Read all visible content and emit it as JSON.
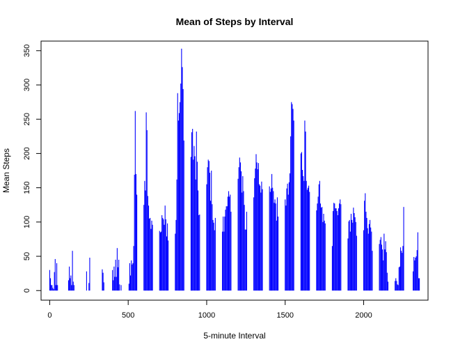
{
  "chart_data": {
    "type": "bar",
    "title": "Mean of Steps by Interval",
    "xlabel": "5-minute Interval",
    "ylabel": "Mean Steps",
    "xlim": [
      -55,
      2410
    ],
    "ylim": [
      -14,
      364
    ],
    "xticks": [
      0,
      500,
      1000,
      1500,
      2000
    ],
    "yticks": [
      0,
      50,
      100,
      150,
      200,
      250,
      300,
      350
    ],
    "color": "#0000ff",
    "grid": false,
    "legend": "none",
    "series": [
      {
        "x": [
          0,
          5,
          10,
          15,
          20,
          25,
          30,
          35,
          40,
          45,
          50,
          55,
          100,
          105,
          110,
          115,
          120,
          125,
          130,
          135,
          140,
          145,
          150,
          155,
          200,
          205,
          210,
          215,
          220,
          225,
          230,
          235,
          240,
          245,
          250,
          255,
          300,
          305,
          310,
          315,
          320,
          325,
          330,
          335,
          340,
          345,
          350,
          355,
          400,
          405,
          410,
          415,
          420,
          425,
          430,
          435,
          440,
          445,
          450,
          455,
          500,
          505,
          510,
          515,
          520,
          525,
          530,
          535,
          540,
          545,
          550,
          555,
          600,
          605,
          610,
          615,
          620,
          625,
          630,
          635,
          640,
          645,
          650,
          655,
          700,
          705,
          710,
          715,
          720,
          725,
          730,
          735,
          740,
          745,
          750,
          755,
          800,
          805,
          810,
          815,
          820,
          825,
          830,
          835,
          840,
          845,
          850,
          855,
          900,
          905,
          910,
          915,
          920,
          925,
          930,
          935,
          940,
          945,
          950,
          955,
          1000,
          1005,
          1010,
          1015,
          1020,
          1025,
          1030,
          1035,
          1040,
          1045,
          1050,
          1055,
          1100,
          1105,
          1110,
          1115,
          1120,
          1125,
          1130,
          1135,
          1140,
          1145,
          1150,
          1155,
          1200,
          1205,
          1210,
          1215,
          1220,
          1225,
          1230,
          1235,
          1240,
          1245,
          1250,
          1255,
          1300,
          1305,
          1310,
          1315,
          1320,
          1325,
          1330,
          1335,
          1340,
          1345,
          1350,
          1355,
          1400,
          1405,
          1410,
          1415,
          1420,
          1425,
          1430,
          1435,
          1440,
          1445,
          1450,
          1455,
          1500,
          1505,
          1510,
          1515,
          1520,
          1525,
          1530,
          1535,
          1540,
          1545,
          1550,
          1555,
          1600,
          1605,
          1610,
          1615,
          1620,
          1625,
          1630,
          1635,
          1640,
          1645,
          1650,
          1655,
          1700,
          1705,
          1710,
          1715,
          1720,
          1725,
          1730,
          1735,
          1740,
          1745,
          1750,
          1755,
          1800,
          1805,
          1810,
          1815,
          1820,
          1825,
          1830,
          1835,
          1840,
          1845,
          1850,
          1855,
          1900,
          1905,
          1910,
          1915,
          1920,
          1925,
          1930,
          1935,
          1940,
          1945,
          1950,
          1955,
          2000,
          2005,
          2010,
          2015,
          2020,
          2025,
          2030,
          2035,
          2040,
          2045,
          2050,
          2055,
          2100,
          2105,
          2110,
          2115,
          2120,
          2125,
          2130,
          2135,
          2140,
          2145,
          2150,
          2155,
          2200,
          2205,
          2210,
          2215,
          2220,
          2225,
          2230,
          2235,
          2240,
          2245,
          2250,
          2255,
          2300,
          2305,
          2310,
          2315,
          2320,
          2325,
          2330,
          2335,
          2340,
          2345,
          2350,
          2355
        ],
        "y": [
          30,
          18,
          8,
          8,
          4,
          2,
          27,
          46,
          8,
          40,
          8,
          0,
          0,
          0,
          0,
          0,
          15,
          35,
          18,
          22,
          8,
          58,
          13,
          8,
          0,
          0,
          0,
          0,
          0,
          0,
          0,
          28,
          0,
          0,
          11,
          48,
          0,
          0,
          0,
          0,
          0,
          0,
          0,
          31,
          26,
          12,
          0,
          0,
          30,
          15,
          35,
          20,
          45,
          20,
          62,
          34,
          45,
          9,
          0,
          8,
          0,
          10,
          40,
          22,
          44,
          38,
          40,
          65,
          169,
          262,
          170,
          140,
          125,
          160,
          146,
          260,
          234,
          138,
          124,
          105,
          106,
          90,
          102,
          96,
          87,
          85,
          86,
          110,
          106,
          104,
          96,
          124,
          104,
          79,
          98,
          73,
          83,
          103,
          162,
          288,
          248,
          259,
          275,
          302,
          353,
          326,
          294,
          219,
          195,
          231,
          236,
          191,
          211,
          196,
          162,
          232,
          188,
          146,
          110,
          111,
          155,
          180,
          191,
          189,
          172,
          131,
          175,
          126,
          103,
          99,
          88,
          106,
          86,
          108,
          86,
          108,
          118,
          123,
          123,
          137,
          145,
          137,
          140,
          115,
          163,
          180,
          194,
          187,
          174,
          143,
          167,
          145,
          125,
          89,
          89,
          115,
          136,
          164,
          178,
          199,
          187,
          177,
          186,
          155,
          153,
          143,
          159,
          148,
          152,
          144,
          149,
          170,
          150,
          145,
          128,
          133,
          127,
          102,
          136,
          108,
          133,
          124,
          149,
          156,
          140,
          158,
          171,
          225,
          275,
          272,
          265,
          248,
          200,
          202,
          176,
          167,
          160,
          248,
          232,
          160,
          147,
          150,
          153,
          144,
          117,
          127,
          137,
          155,
          160,
          127,
          121,
          122,
          100,
          112,
          102,
          98,
          65,
          116,
          128,
          127,
          120,
          120,
          116,
          110,
          120,
          127,
          133,
          126,
          76,
          101,
          103,
          86,
          112,
          103,
          99,
          121,
          113,
          107,
          100,
          80,
          88,
          131,
          142,
          115,
          106,
          91,
          83,
          97,
          103,
          92,
          86,
          58,
          68,
          74,
          78,
          67,
          60,
          44,
          83,
          60,
          72,
          56,
          26,
          13,
          14,
          18,
          14,
          9,
          8,
          34,
          35,
          63,
          58,
          55,
          65,
          122,
          0,
          0,
          0,
          28,
          49,
          44,
          48,
          50,
          59,
          85,
          18,
          18
        ]
      }
    ]
  }
}
